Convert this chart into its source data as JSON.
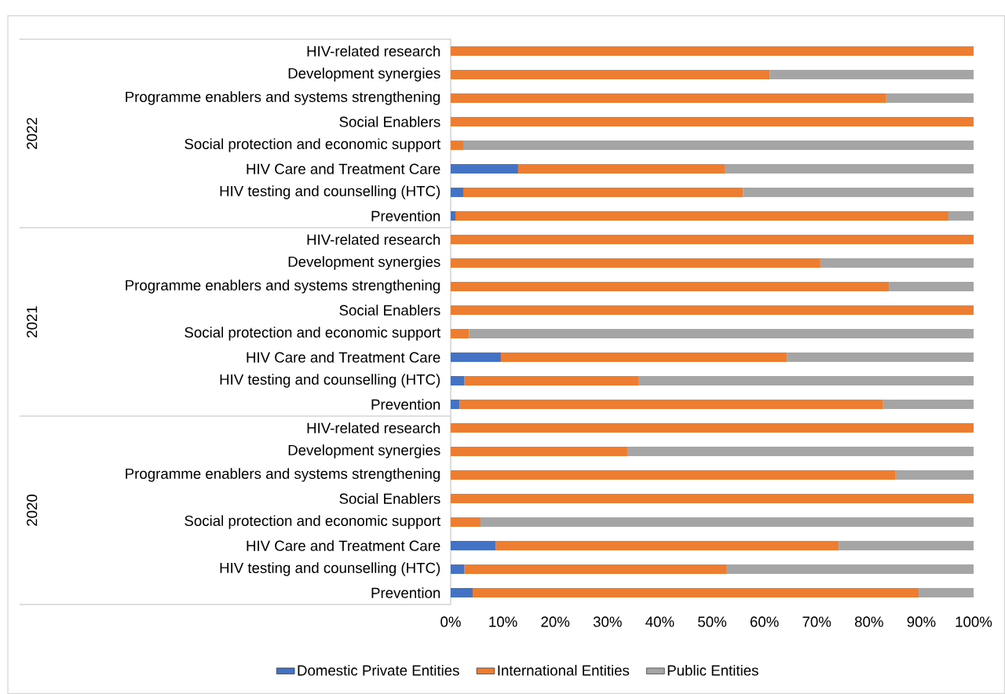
{
  "chart_data": {
    "type": "bar",
    "orientation": "horizontal",
    "stacked": true,
    "categories": [
      "HIV-related research",
      "Development synergies",
      "Programme enablers and systems strengthening",
      "Social Enablers",
      "Social protection and economic support",
      "HIV Care and Treatment Care",
      "HIV testing and counselling (HTC)",
      "Prevention",
      "HIV-related research",
      "Development synergies",
      "Programme enablers and systems strengthening",
      "Social Enablers",
      "Social protection and economic support",
      "HIV Care and Treatment Care",
      "HIV testing and counselling (HTC)",
      "Prevention",
      "HIV-related research",
      "Development synergies",
      "Programme enablers and systems strengthening",
      "Social Enablers",
      "Social protection and economic support",
      "HIV Care and Treatment Care",
      "HIV testing and counselling (HTC)",
      "Prevention"
    ],
    "series": [
      {
        "name": "Domestic Private Entities",
        "color": "#4472c4",
        "values": [
          0,
          0,
          0,
          0,
          0,
          12.9,
          2.4,
          0.9,
          0,
          0,
          0,
          0,
          0,
          9.6,
          2.6,
          1.7,
          0,
          0,
          0,
          0,
          0,
          8.6,
          2.6,
          4.2
        ]
      },
      {
        "name": "International Entities",
        "color": "#ed7d31",
        "values": [
          100,
          61,
          83.3,
          100,
          2.4,
          39.5,
          53.5,
          94.3,
          100,
          70.7,
          83.8,
          100,
          3.5,
          54.7,
          33.4,
          81.0,
          100,
          33.9,
          85.1,
          100,
          5.7,
          65.6,
          50.1,
          85.3
        ]
      },
      {
        "name": "Public Entities",
        "color": "#a5a5a5",
        "values": [
          0,
          39,
          16.7,
          0,
          97.6,
          47.6,
          44.1,
          4.8,
          0,
          29.3,
          16.2,
          0,
          96.5,
          35.7,
          64.0,
          17.3,
          0,
          66.1,
          14.9,
          0,
          94.3,
          25.8,
          47.3,
          10.5
        ]
      }
    ],
    "xlim": [
      0,
      100
    ],
    "xticks": [
      {
        "value": 0,
        "label": "0%"
      },
      {
        "value": 10,
        "label": "10%"
      },
      {
        "value": 20,
        "label": "20%"
      },
      {
        "value": 30,
        "label": "30%"
      },
      {
        "value": 40,
        "label": "40%"
      },
      {
        "value": 50,
        "label": "50%"
      },
      {
        "value": 60,
        "label": "60%"
      },
      {
        "value": 70,
        "label": "70%"
      },
      {
        "value": 80,
        "label": "80%"
      },
      {
        "value": 90,
        "label": "90%"
      },
      {
        "value": 100,
        "label": "100%"
      }
    ],
    "annotations": [
      "2022",
      "2021",
      "2020"
    ],
    "legend": "bottom"
  }
}
